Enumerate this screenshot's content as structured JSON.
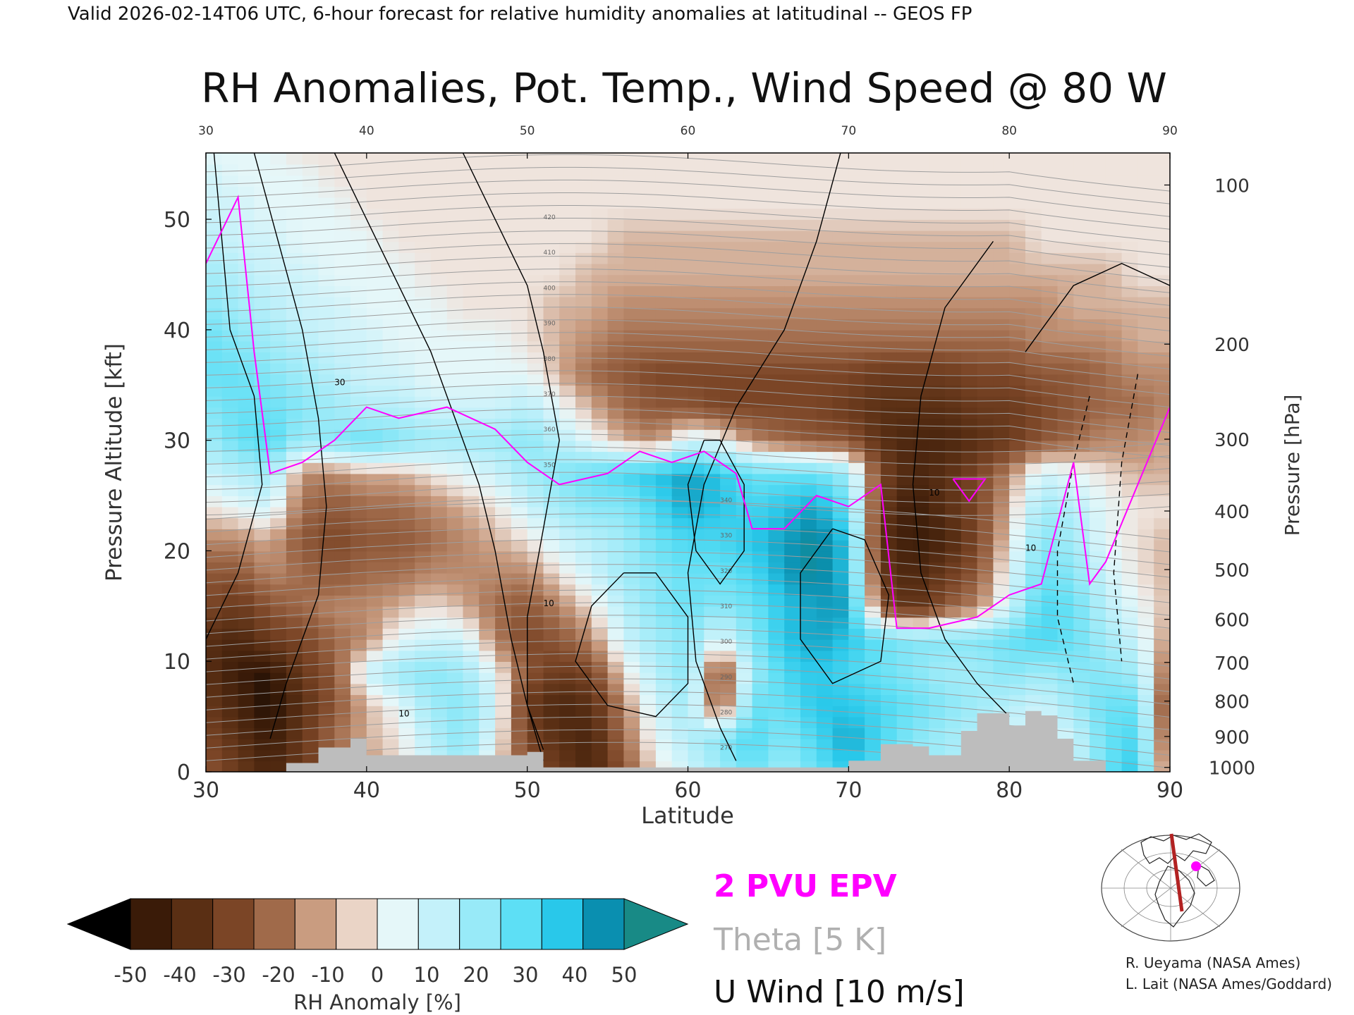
{
  "header": {
    "valid_line": "Valid 2026-02-14T06 UTC, 6-hour forecast for relative humidity anomalies at latitudinal -- GEOS FP"
  },
  "chart_data": {
    "type": "heatmap",
    "title": "RH Anomalies, Pot. Temp., Wind Speed @ 80 W",
    "xlabel": "Latitude",
    "ylabel": "Pressure Altitude [kft]",
    "y2label": "Pressure [hPa]",
    "xlim": [
      30,
      90
    ],
    "ylim": [
      0,
      56
    ],
    "x_ticks": [
      "30",
      "40",
      "50",
      "60",
      "70",
      "80",
      "90"
    ],
    "y_ticks": [
      "0",
      "10",
      "20",
      "30",
      "40",
      "50"
    ],
    "pressure_ticks": [
      {
        "label": "100",
        "kft": 53.1
      },
      {
        "label": "200",
        "kft": 38.7
      },
      {
        "label": "300",
        "kft": 30.1
      },
      {
        "label": "400",
        "kft": 23.6
      },
      {
        "label": "500",
        "kft": 18.3
      },
      {
        "label": "600",
        "kft": 13.8
      },
      {
        "label": "700",
        "kft": 9.9
      },
      {
        "label": "800",
        "kft": 6.4
      },
      {
        "label": "900",
        "kft": 3.2
      },
      {
        "label": "1000",
        "kft": 0.4
      }
    ],
    "rh_anomaly_field": {
      "lat": [
        30,
        32,
        34,
        36,
        38,
        40,
        42,
        44,
        46,
        48,
        50,
        52,
        54,
        56,
        58,
        60,
        62,
        64,
        66,
        68,
        70,
        72,
        74,
        76,
        78,
        80,
        82,
        84,
        86,
        88,
        90
      ],
      "kft": [
        0,
        3,
        6,
        9,
        12,
        15,
        18,
        21,
        24,
        27,
        30,
        33,
        36,
        39,
        42,
        45,
        48,
        51,
        54,
        56
      ],
      "values_percent": [
        [
          -20,
          -30,
          -40,
          -30,
          -20,
          -10,
          0,
          10,
          20,
          0,
          -20,
          -30,
          -40,
          -20,
          0,
          10,
          20,
          30,
          20,
          30,
          40,
          30,
          20,
          20,
          10,
          10,
          0,
          10,
          30,
          40,
          -20
        ],
        [
          -25,
          -35,
          -45,
          -30,
          -15,
          -5,
          0,
          15,
          25,
          5,
          -25,
          -35,
          -40,
          -15,
          5,
          15,
          25,
          35,
          25,
          35,
          45,
          35,
          25,
          20,
          15,
          10,
          5,
          10,
          30,
          35,
          -25
        ],
        [
          -30,
          -40,
          -50,
          -35,
          -20,
          -5,
          5,
          20,
          25,
          10,
          -30,
          -40,
          -35,
          -10,
          10,
          20,
          -20,
          30,
          30,
          40,
          40,
          35,
          30,
          25,
          20,
          15,
          10,
          20,
          30,
          30,
          -30
        ],
        [
          -35,
          -45,
          -48,
          -30,
          -20,
          10,
          20,
          25,
          20,
          5,
          -20,
          -30,
          -25,
          0,
          15,
          25,
          -25,
          20,
          35,
          40,
          35,
          30,
          25,
          20,
          20,
          25,
          20,
          25,
          25,
          20,
          -20
        ],
        [
          -35,
          -40,
          -30,
          -25,
          -15,
          -10,
          5,
          10,
          10,
          -10,
          -25,
          -20,
          -10,
          10,
          20,
          25,
          5,
          25,
          40,
          45,
          40,
          30,
          25,
          25,
          25,
          30,
          35,
          30,
          20,
          10,
          -10
        ],
        [
          -25,
          -30,
          -20,
          -15,
          -10,
          -10,
          -5,
          0,
          -5,
          -15,
          -20,
          -10,
          0,
          15,
          25,
          30,
          25,
          30,
          40,
          45,
          45,
          -20,
          -35,
          -20,
          -10,
          10,
          35,
          30,
          15,
          5,
          -5
        ],
        [
          -20,
          -20,
          -10,
          -15,
          -20,
          -15,
          -15,
          -10,
          -10,
          -10,
          -10,
          0,
          10,
          20,
          25,
          30,
          30,
          35,
          45,
          50,
          40,
          -30,
          -40,
          -30,
          -20,
          5,
          30,
          25,
          10,
          0,
          -5
        ],
        [
          -10,
          -10,
          -5,
          -20,
          -25,
          -20,
          -20,
          -15,
          -10,
          -5,
          0,
          10,
          15,
          20,
          30,
          35,
          35,
          40,
          45,
          50,
          40,
          -35,
          -45,
          -40,
          -25,
          0,
          25,
          20,
          5,
          0,
          -5
        ],
        [
          0,
          5,
          10,
          -15,
          -20,
          -15,
          -15,
          -10,
          -5,
          0,
          10,
          20,
          25,
          25,
          35,
          45,
          40,
          35,
          40,
          45,
          30,
          -30,
          -45,
          -35,
          -25,
          -5,
          20,
          15,
          5,
          0,
          0
        ],
        [
          10,
          15,
          20,
          -10,
          -10,
          -5,
          -5,
          0,
          5,
          10,
          20,
          25,
          30,
          35,
          40,
          45,
          40,
          30,
          30,
          30,
          20,
          -25,
          -40,
          -35,
          -25,
          -10,
          10,
          5,
          0,
          -5,
          -5
        ],
        [
          20,
          30,
          35,
          20,
          25,
          30,
          25,
          20,
          20,
          20,
          25,
          15,
          5,
          -5,
          -10,
          10,
          5,
          -10,
          -15,
          -20,
          -20,
          -35,
          -40,
          -40,
          -35,
          -30,
          -20,
          -15,
          -10,
          -10,
          -5
        ],
        [
          25,
          30,
          30,
          25,
          20,
          15,
          15,
          10,
          10,
          10,
          15,
          5,
          -5,
          -15,
          -20,
          -20,
          -25,
          -25,
          -25,
          -25,
          -30,
          -35,
          -35,
          -35,
          -30,
          -30,
          -25,
          -20,
          -15,
          -15,
          -10
        ],
        [
          30,
          30,
          25,
          20,
          15,
          10,
          10,
          5,
          5,
          5,
          5,
          -5,
          -15,
          -20,
          -25,
          -25,
          -25,
          -25,
          -25,
          -25,
          -25,
          -30,
          -30,
          -30,
          -25,
          -25,
          -20,
          -20,
          -15,
          -10,
          -10
        ],
        [
          30,
          25,
          20,
          15,
          10,
          10,
          5,
          5,
          5,
          5,
          0,
          -5,
          -10,
          -15,
          -15,
          -15,
          -15,
          -15,
          -15,
          -15,
          -15,
          -15,
          -15,
          -15,
          -15,
          -15,
          -10,
          -10,
          -10,
          -5,
          -5
        ],
        [
          25,
          20,
          15,
          10,
          10,
          5,
          5,
          5,
          0,
          0,
          0,
          -5,
          -5,
          -10,
          -10,
          -10,
          -10,
          -10,
          -10,
          -10,
          -10,
          -10,
          -10,
          -10,
          -10,
          -10,
          -10,
          -5,
          -5,
          -5,
          -5
        ],
        [
          20,
          15,
          10,
          10,
          5,
          5,
          5,
          0,
          0,
          0,
          0,
          0,
          -5,
          -5,
          -5,
          -5,
          -5,
          -5,
          -5,
          -5,
          -5,
          -5,
          -5,
          -5,
          -5,
          -5,
          -5,
          -5,
          -5,
          0,
          0
        ],
        [
          15,
          10,
          10,
          5,
          5,
          5,
          0,
          0,
          0,
          0,
          0,
          0,
          0,
          -5,
          -5,
          -5,
          -5,
          -5,
          -5,
          -5,
          -5,
          -5,
          -5,
          -5,
          -5,
          -5,
          0,
          0,
          0,
          0,
          0
        ],
        [
          10,
          10,
          5,
          5,
          5,
          0,
          0,
          0,
          0,
          0,
          0,
          0,
          0,
          0,
          0,
          0,
          0,
          0,
          0,
          0,
          0,
          0,
          0,
          0,
          0,
          0,
          0,
          0,
          0,
          0,
          0
        ],
        [
          10,
          5,
          5,
          5,
          0,
          0,
          0,
          0,
          0,
          0,
          0,
          0,
          0,
          0,
          0,
          0,
          0,
          0,
          0,
          0,
          0,
          0,
          0,
          0,
          0,
          0,
          0,
          0,
          0,
          0,
          0
        ],
        [
          5,
          5,
          5,
          0,
          0,
          0,
          0,
          0,
          0,
          0,
          0,
          0,
          0,
          0,
          0,
          0,
          0,
          0,
          0,
          0,
          0,
          0,
          0,
          0,
          0,
          0,
          0,
          0,
          0,
          0,
          0
        ]
      ]
    },
    "theta_contours": {
      "label": "Theta [5 K]",
      "color": "#9e9e9e",
      "labeled_values": [
        "270",
        "280",
        "290",
        "300",
        "310",
        "320",
        "330",
        "340",
        "350",
        "360",
        "370",
        "380",
        "390",
        "400",
        "410",
        "420"
      ]
    },
    "u_wind_contours": {
      "label": "U Wind [10 m/s]",
      "color": "#000000",
      "labeled_values": [
        "10",
        "30"
      ]
    },
    "epv": {
      "label": "2 PVU EPV",
      "color": "#ff00ff",
      "level_kft_by_lat": [
        [
          30,
          46
        ],
        [
          32,
          52
        ],
        [
          33,
          38
        ],
        [
          34,
          27
        ],
        [
          36,
          28
        ],
        [
          38,
          30
        ],
        [
          40,
          33
        ],
        [
          42,
          32
        ],
        [
          45,
          33
        ],
        [
          48,
          31
        ],
        [
          50,
          28
        ],
        [
          52,
          26
        ],
        [
          55,
          27
        ],
        [
          57,
          29
        ],
        [
          59,
          28
        ],
        [
          61,
          29
        ],
        [
          63,
          27
        ],
        [
          64,
          22
        ],
        [
          66,
          22
        ],
        [
          68,
          25
        ],
        [
          70,
          24
        ],
        [
          72,
          26
        ],
        [
          73,
          13
        ],
        [
          75,
          13
        ],
        [
          78,
          14
        ],
        [
          80,
          16
        ],
        [
          82,
          17
        ],
        [
          84,
          28
        ],
        [
          85,
          17
        ],
        [
          86,
          19
        ],
        [
          88,
          26
        ],
        [
          90,
          33
        ]
      ]
    },
    "terrain": {
      "color": "#bdbdbd",
      "top_kft_by_lat": [
        [
          35,
          0.8
        ],
        [
          37,
          2.2
        ],
        [
          39,
          3
        ],
        [
          40,
          1.5
        ],
        [
          45,
          1.5
        ],
        [
          46,
          1.5
        ],
        [
          50,
          1.8
        ],
        [
          51,
          0.4
        ],
        [
          70,
          1
        ],
        [
          72,
          2.5
        ],
        [
          74,
          2.3
        ],
        [
          75,
          1.5
        ],
        [
          77,
          3.7
        ],
        [
          78,
          5.3
        ],
        [
          80,
          4.2
        ],
        [
          81,
          5.5
        ],
        [
          82,
          5.1
        ],
        [
          83,
          3
        ],
        [
          84,
          1
        ],
        [
          86,
          0.5
        ]
      ]
    },
    "colorbar": {
      "label": "RH Anomaly [%]",
      "tick_labels": [
        "-50",
        "-40",
        "-30",
        "-20",
        "-10",
        "0",
        "10",
        "20",
        "30",
        "40",
        "50"
      ],
      "colors": [
        "#000000",
        "#3a1b08",
        "#5a2f14",
        "#7b4526",
        "#a06a4a",
        "#c99c80",
        "#ead4c6",
        "#e5f7f9",
        "#c4f1fa",
        "#98eaf8",
        "#5ddff5",
        "#29c8ea",
        "#0a8fb0",
        "#188a86"
      ]
    },
    "legend_entries": [
      "2 PVU EPV",
      "Theta [5 K]",
      "U Wind [10 m/s]"
    ],
    "inset_map": {
      "cross_section": "80 W",
      "marker": "magenta-dot"
    }
  },
  "credits": {
    "line1": "R. Ueyama (NASA Ames)",
    "line2": "L. Lait (NASA Ames/Goddard)"
  }
}
